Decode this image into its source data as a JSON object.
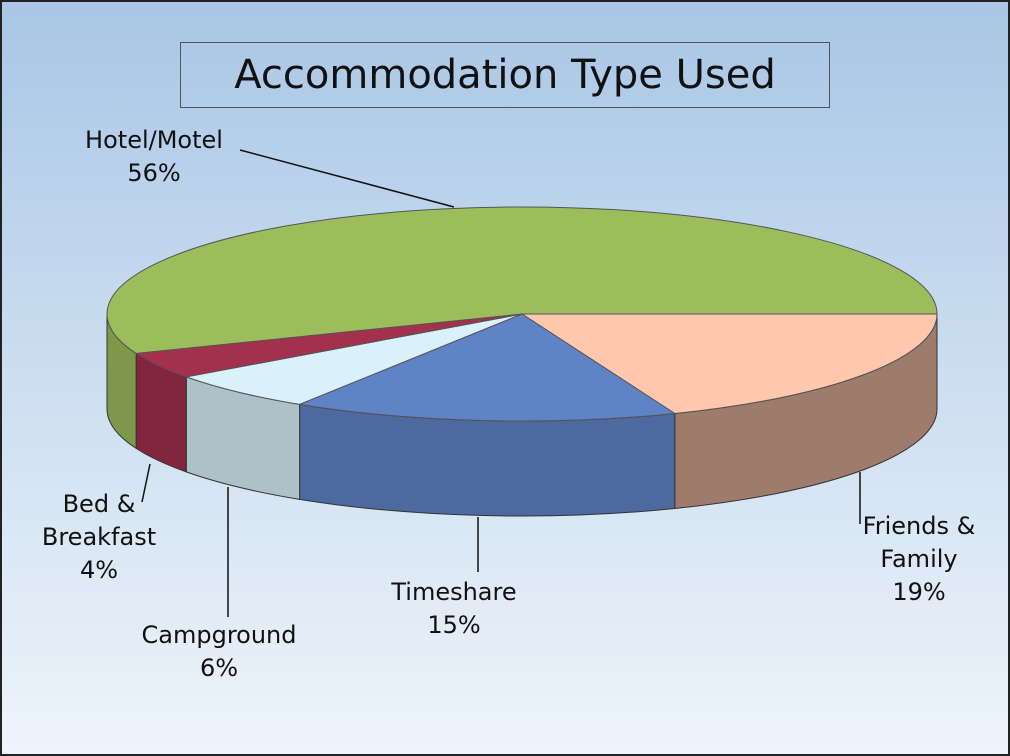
{
  "chart_data": {
    "type": "pie",
    "title": "Accommodation Type Used",
    "categories": [
      "Friends & Family",
      "Timeshare",
      "Campground",
      "Bed & Breakfast",
      "Hotel/Motel"
    ],
    "values": [
      19,
      15,
      6,
      4,
      56
    ],
    "value_labels": [
      "19%",
      "15%",
      "6%",
      "4%",
      "56%"
    ],
    "colors": [
      "#ffc7ad",
      "#5f84c6",
      "#d8f1fa",
      "#a3304d",
      "#9dbd5c"
    ]
  }
}
